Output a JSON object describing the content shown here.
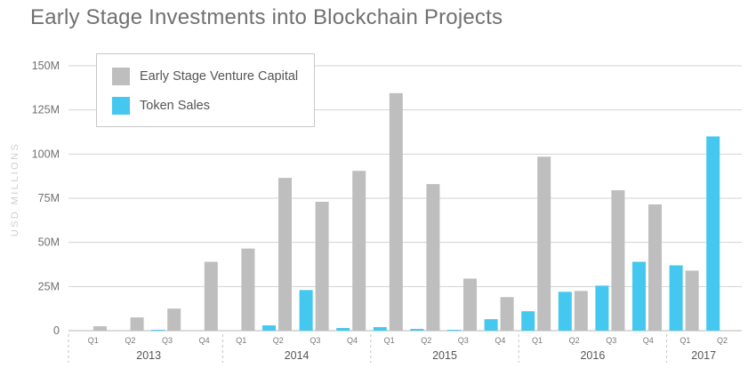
{
  "chart_data": {
    "type": "bar",
    "title": "Early Stage Investments into Blockchain Projects",
    "xlabel": "",
    "ylabel": "USD MILLIONS",
    "ylim": [
      0,
      150
    ],
    "y_ticks": [
      0,
      25,
      50,
      75,
      100,
      125,
      150
    ],
    "y_tick_labels": [
      "0",
      "25M",
      "50M",
      "75M",
      "100M",
      "125M",
      "150M"
    ],
    "grid": true,
    "legend_position": "top-left",
    "years": [
      {
        "label": "2013",
        "quarters": 4
      },
      {
        "label": "2014",
        "quarters": 4
      },
      {
        "label": "2015",
        "quarters": 4
      },
      {
        "label": "2016",
        "quarters": 4
      },
      {
        "label": "2017",
        "quarters": 2
      }
    ],
    "categories": [
      "Q1",
      "Q2",
      "Q3",
      "Q4",
      "Q1",
      "Q2",
      "Q3",
      "Q4",
      "Q1",
      "Q2",
      "Q3",
      "Q4",
      "Q1",
      "Q2",
      "Q3",
      "Q4",
      "Q1",
      "Q2"
    ],
    "series": [
      {
        "name": "Token Sales",
        "color": "#45c8ef",
        "values": [
          0,
          0,
          0.5,
          0,
          0,
          3,
          23,
          1.5,
          2,
          1,
          0.5,
          6.5,
          11,
          22,
          25.5,
          39,
          37,
          110
        ]
      },
      {
        "name": "Early Stage Venture Capital",
        "color": "#bebebe",
        "values": [
          2.5,
          7.5,
          12.5,
          39,
          46.5,
          86.5,
          73,
          90.5,
          134.5,
          83,
          29.5,
          19,
          98.5,
          22.5,
          79.5,
          71.5,
          34,
          0
        ]
      }
    ]
  }
}
